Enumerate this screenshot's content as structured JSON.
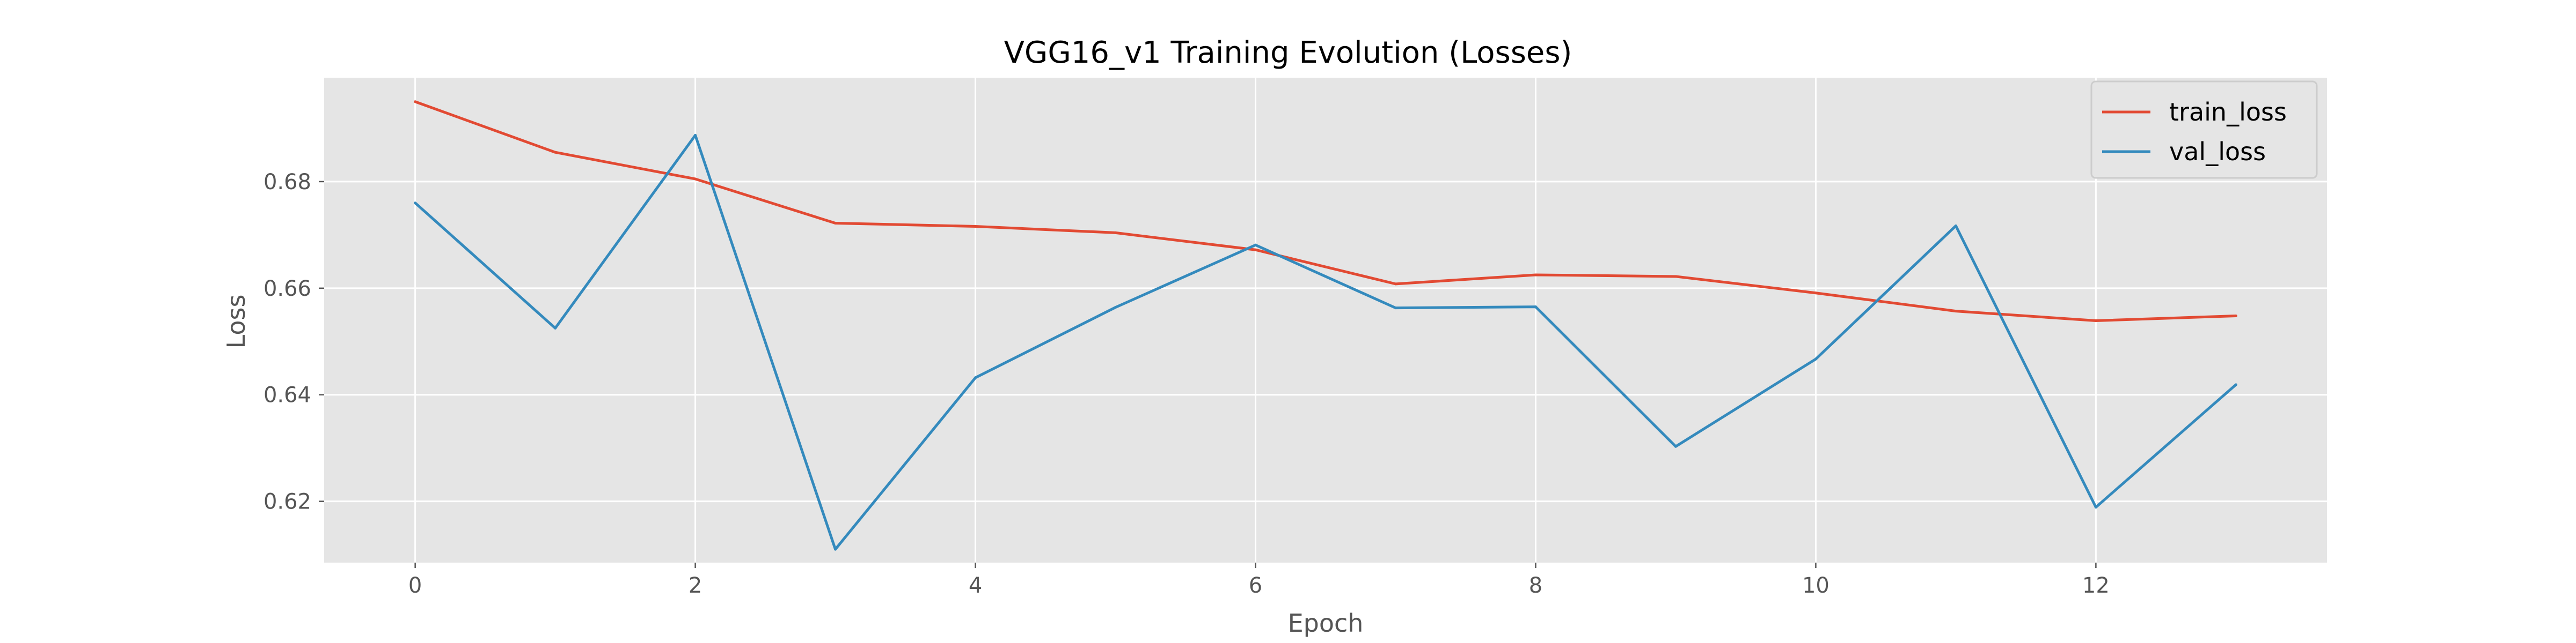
{
  "chart_data": {
    "type": "line",
    "title": "VGG16_v1 Training Evolution (Losses)",
    "xlabel": "Epoch",
    "ylabel": "Loss",
    "x": [
      0,
      1,
      2,
      3,
      4,
      5,
      6,
      7,
      8,
      9,
      10,
      11,
      12,
      13
    ],
    "xlim": [
      -0.65,
      13.65
    ],
    "ylim": [
      0.6085,
      0.6995
    ],
    "xticks": [
      0,
      2,
      4,
      6,
      8,
      10,
      12
    ],
    "xtick_labels": [
      "0",
      "2",
      "4",
      "6",
      "8",
      "10",
      "12"
    ],
    "yticks": [
      0.62,
      0.64,
      0.66,
      0.68
    ],
    "ytick_labels": [
      "0.62",
      "0.64",
      "0.66",
      "0.68"
    ],
    "grid": true,
    "legend_position": "top-right",
    "series": [
      {
        "name": "train_loss",
        "color": "#E24A33",
        "values": [
          0.695,
          0.6855,
          0.6805,
          0.6722,
          0.6716,
          0.6704,
          0.6672,
          0.6608,
          0.6625,
          0.6622,
          0.6591,
          0.6557,
          0.6539,
          0.6548
        ]
      },
      {
        "name": "val_loss",
        "color": "#348ABD",
        "values": [
          0.676,
          0.6525,
          0.6887,
          0.611,
          0.6432,
          0.6564,
          0.6681,
          0.6563,
          0.6565,
          0.6303,
          0.6467,
          0.6717,
          0.6189,
          0.6419
        ]
      }
    ],
    "colors": {
      "plot_background": "#E5E5E5",
      "grid": "#FFFFFF"
    }
  }
}
